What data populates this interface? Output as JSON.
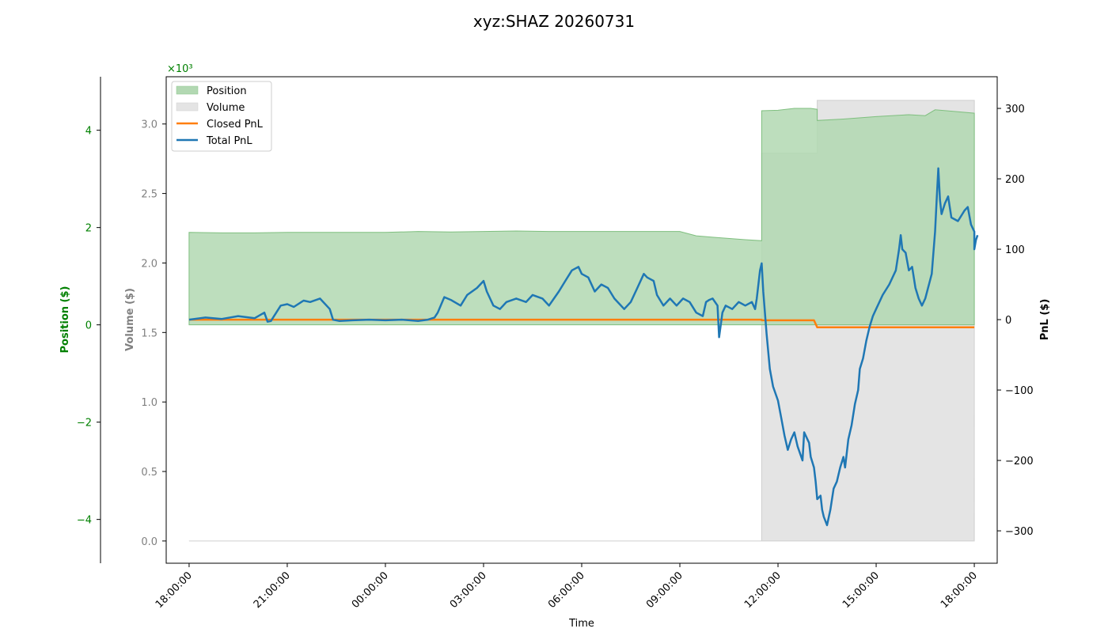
{
  "chart_data": {
    "type": "area",
    "title": "xyz:SHAZ 20260731",
    "xlabel": "Time",
    "x_ticks": [
      "18:00:00",
      "21:00:00",
      "00:00:00",
      "03:00:00",
      "06:00:00",
      "09:00:00",
      "12:00:00",
      "15:00:00",
      "18:00:00"
    ],
    "axes": {
      "position": {
        "label": "Position ($)",
        "color": "#008000",
        "ticks": [
          -4,
          -2,
          0,
          2,
          4
        ],
        "tick_labels": [
          "−4",
          "−2",
          "0",
          "2",
          "4"
        ],
        "range": [
          -4.9,
          5.1
        ],
        "exponent_label": "×10³"
      },
      "volume": {
        "label": "Volume ($)",
        "color": "#808080",
        "ticks": [
          0.0,
          0.5,
          1.0,
          1.5,
          2.0,
          2.5,
          3.0
        ],
        "tick_labels": [
          "0.0",
          "0.5",
          "1.0",
          "1.5",
          "2.0",
          "2.5",
          "3.0"
        ],
        "range": [
          -0.16,
          3.34
        ]
      },
      "pnl": {
        "label": "PnL ($)",
        "color": "#000000",
        "ticks": [
          -300,
          -200,
          -100,
          0,
          100,
          200,
          300
        ],
        "tick_labels": [
          "−300",
          "−200",
          "−100",
          "0",
          "100",
          "200",
          "300"
        ],
        "range": [
          -346,
          345
        ]
      }
    },
    "legend": {
      "placement": "upper-left",
      "entries": [
        {
          "label": "Position",
          "kind": "patch",
          "color": "#b2d8b2"
        },
        {
          "label": "Volume",
          "kind": "patch",
          "color": "#e4e4e4"
        },
        {
          "label": "Closed PnL",
          "kind": "line",
          "color": "#ff7f0e"
        },
        {
          "label": "Total PnL",
          "kind": "line",
          "color": "#1f77b4"
        }
      ]
    },
    "x_range_hours": [
      -0.7,
      24.7
    ],
    "series": [
      {
        "name": "Position",
        "axis": "position",
        "color": "#b2d8b2",
        "points": [
          [
            0,
            1.9
          ],
          [
            1,
            1.89
          ],
          [
            2,
            1.89
          ],
          [
            3,
            1.9
          ],
          [
            4,
            1.9
          ],
          [
            5,
            1.9
          ],
          [
            6,
            1.9
          ],
          [
            7,
            1.92
          ],
          [
            8,
            1.91
          ],
          [
            9,
            1.92
          ],
          [
            10,
            1.93
          ],
          [
            11,
            1.92
          ],
          [
            12,
            1.92
          ],
          [
            13,
            1.92
          ],
          [
            14,
            1.92
          ],
          [
            15,
            1.92
          ],
          [
            15.5,
            1.83
          ],
          [
            16,
            1.8
          ],
          [
            17,
            1.75
          ],
          [
            17.5,
            1.73
          ],
          [
            17.5,
            4.4
          ],
          [
            18,
            4.41
          ],
          [
            18.5,
            4.45
          ],
          [
            19,
            4.45
          ],
          [
            19.2,
            4.43
          ],
          [
            19.2,
            4.2
          ],
          [
            20,
            4.23
          ],
          [
            21,
            4.28
          ],
          [
            22,
            4.32
          ],
          [
            22.5,
            4.3
          ],
          [
            22.8,
            4.42
          ],
          [
            23.5,
            4.38
          ],
          [
            24,
            4.35
          ]
        ]
      },
      {
        "name": "Volume",
        "axis": "volume",
        "color": "#e4e4e4",
        "points": [
          [
            0,
            0
          ],
          [
            17.5,
            0
          ],
          [
            17.5,
            2.79
          ],
          [
            19.2,
            2.79
          ],
          [
            19.2,
            3.17
          ],
          [
            24,
            3.17
          ]
        ]
      },
      {
        "name": "Closed PnL",
        "axis": "pnl",
        "color": "#ff7f0e",
        "points": [
          [
            0,
            0
          ],
          [
            17.5,
            0
          ],
          [
            17.5,
            -1
          ],
          [
            19.1,
            -1
          ],
          [
            19.2,
            -11
          ],
          [
            24,
            -11
          ]
        ]
      },
      {
        "name": "Total PnL",
        "axis": "pnl",
        "color": "#1f77b4",
        "points": [
          [
            0,
            0
          ],
          [
            0.5,
            3
          ],
          [
            1,
            1
          ],
          [
            1.5,
            5
          ],
          [
            2,
            2
          ],
          [
            2.3,
            10
          ],
          [
            2.4,
            -3
          ],
          [
            2.5,
            -2
          ],
          [
            2.8,
            20
          ],
          [
            3,
            22
          ],
          [
            3.2,
            18
          ],
          [
            3.5,
            27
          ],
          [
            3.7,
            25
          ],
          [
            4,
            30
          ],
          [
            4.3,
            15
          ],
          [
            4.4,
            0
          ],
          [
            4.6,
            -2
          ],
          [
            5,
            -1
          ],
          [
            5.5,
            0
          ],
          [
            6,
            -1
          ],
          [
            6.5,
            0
          ],
          [
            7,
            -2
          ],
          [
            7.3,
            0
          ],
          [
            7.5,
            3
          ],
          [
            7.6,
            10
          ],
          [
            7.8,
            32
          ],
          [
            8,
            28
          ],
          [
            8.3,
            20
          ],
          [
            8.5,
            35
          ],
          [
            8.8,
            45
          ],
          [
            9,
            55
          ],
          [
            9.1,
            40
          ],
          [
            9.3,
            20
          ],
          [
            9.5,
            15
          ],
          [
            9.7,
            25
          ],
          [
            10,
            30
          ],
          [
            10.3,
            25
          ],
          [
            10.5,
            35
          ],
          [
            10.8,
            30
          ],
          [
            11,
            20
          ],
          [
            11.3,
            40
          ],
          [
            11.5,
            55
          ],
          [
            11.7,
            70
          ],
          [
            11.9,
            75
          ],
          [
            12,
            65
          ],
          [
            12.2,
            60
          ],
          [
            12.4,
            40
          ],
          [
            12.6,
            50
          ],
          [
            12.8,
            45
          ],
          [
            13,
            30
          ],
          [
            13.3,
            15
          ],
          [
            13.5,
            25
          ],
          [
            13.7,
            45
          ],
          [
            13.9,
            65
          ],
          [
            14,
            60
          ],
          [
            14.2,
            55
          ],
          [
            14.3,
            35
          ],
          [
            14.5,
            20
          ],
          [
            14.7,
            30
          ],
          [
            14.9,
            20
          ],
          [
            15.1,
            30
          ],
          [
            15.3,
            25
          ],
          [
            15.5,
            10
          ],
          [
            15.7,
            5
          ],
          [
            15.8,
            25
          ],
          [
            15.9,
            28
          ],
          [
            16,
            30
          ],
          [
            16.15,
            20
          ],
          [
            16.2,
            -25
          ],
          [
            16.3,
            10
          ],
          [
            16.4,
            20
          ],
          [
            16.6,
            15
          ],
          [
            16.8,
            25
          ],
          [
            17,
            20
          ],
          [
            17.2,
            25
          ],
          [
            17.3,
            15
          ],
          [
            17.35,
            30
          ],
          [
            17.45,
            70
          ],
          [
            17.5,
            80
          ],
          [
            17.55,
            40
          ],
          [
            17.65,
            -20
          ],
          [
            17.75,
            -70
          ],
          [
            17.85,
            -95
          ],
          [
            18,
            -115
          ],
          [
            18.1,
            -140
          ],
          [
            18.2,
            -165
          ],
          [
            18.3,
            -185
          ],
          [
            18.4,
            -170
          ],
          [
            18.5,
            -160
          ],
          [
            18.6,
            -180
          ],
          [
            18.75,
            -200
          ],
          [
            18.8,
            -160
          ],
          [
            18.95,
            -175
          ],
          [
            19,
            -195
          ],
          [
            19.1,
            -210
          ],
          [
            19.15,
            -230
          ],
          [
            19.2,
            -255
          ],
          [
            19.3,
            -250
          ],
          [
            19.35,
            -270
          ],
          [
            19.4,
            -280
          ],
          [
            19.5,
            -292
          ],
          [
            19.6,
            -270
          ],
          [
            19.7,
            -240
          ],
          [
            19.8,
            -230
          ],
          [
            19.9,
            -210
          ],
          [
            20.0,
            -195
          ],
          [
            20.05,
            -210
          ],
          [
            20.15,
            -170
          ],
          [
            20.25,
            -150
          ],
          [
            20.35,
            -120
          ],
          [
            20.45,
            -100
          ],
          [
            20.5,
            -70
          ],
          [
            20.6,
            -55
          ],
          [
            20.7,
            -30
          ],
          [
            20.8,
            -10
          ],
          [
            20.9,
            5
          ],
          [
            21.0,
            15
          ],
          [
            21.2,
            35
          ],
          [
            21.4,
            50
          ],
          [
            21.6,
            70
          ],
          [
            21.7,
            100
          ],
          [
            21.75,
            120
          ],
          [
            21.8,
            100
          ],
          [
            21.9,
            95
          ],
          [
            22.0,
            70
          ],
          [
            22.1,
            75
          ],
          [
            22.2,
            45
          ],
          [
            22.3,
            30
          ],
          [
            22.4,
            20
          ],
          [
            22.5,
            30
          ],
          [
            22.7,
            65
          ],
          [
            22.8,
            125
          ],
          [
            22.85,
            170
          ],
          [
            22.9,
            215
          ],
          [
            22.95,
            170
          ],
          [
            23.0,
            150
          ],
          [
            23.1,
            165
          ],
          [
            23.2,
            175
          ],
          [
            23.3,
            145
          ],
          [
            23.5,
            140
          ],
          [
            23.7,
            155
          ],
          [
            23.8,
            160
          ],
          [
            23.9,
            135
          ],
          [
            24.0,
            125
          ],
          [
            24.0,
            100
          ],
          [
            24.05,
            113
          ],
          [
            24.1,
            120
          ]
        ]
      }
    ]
  }
}
